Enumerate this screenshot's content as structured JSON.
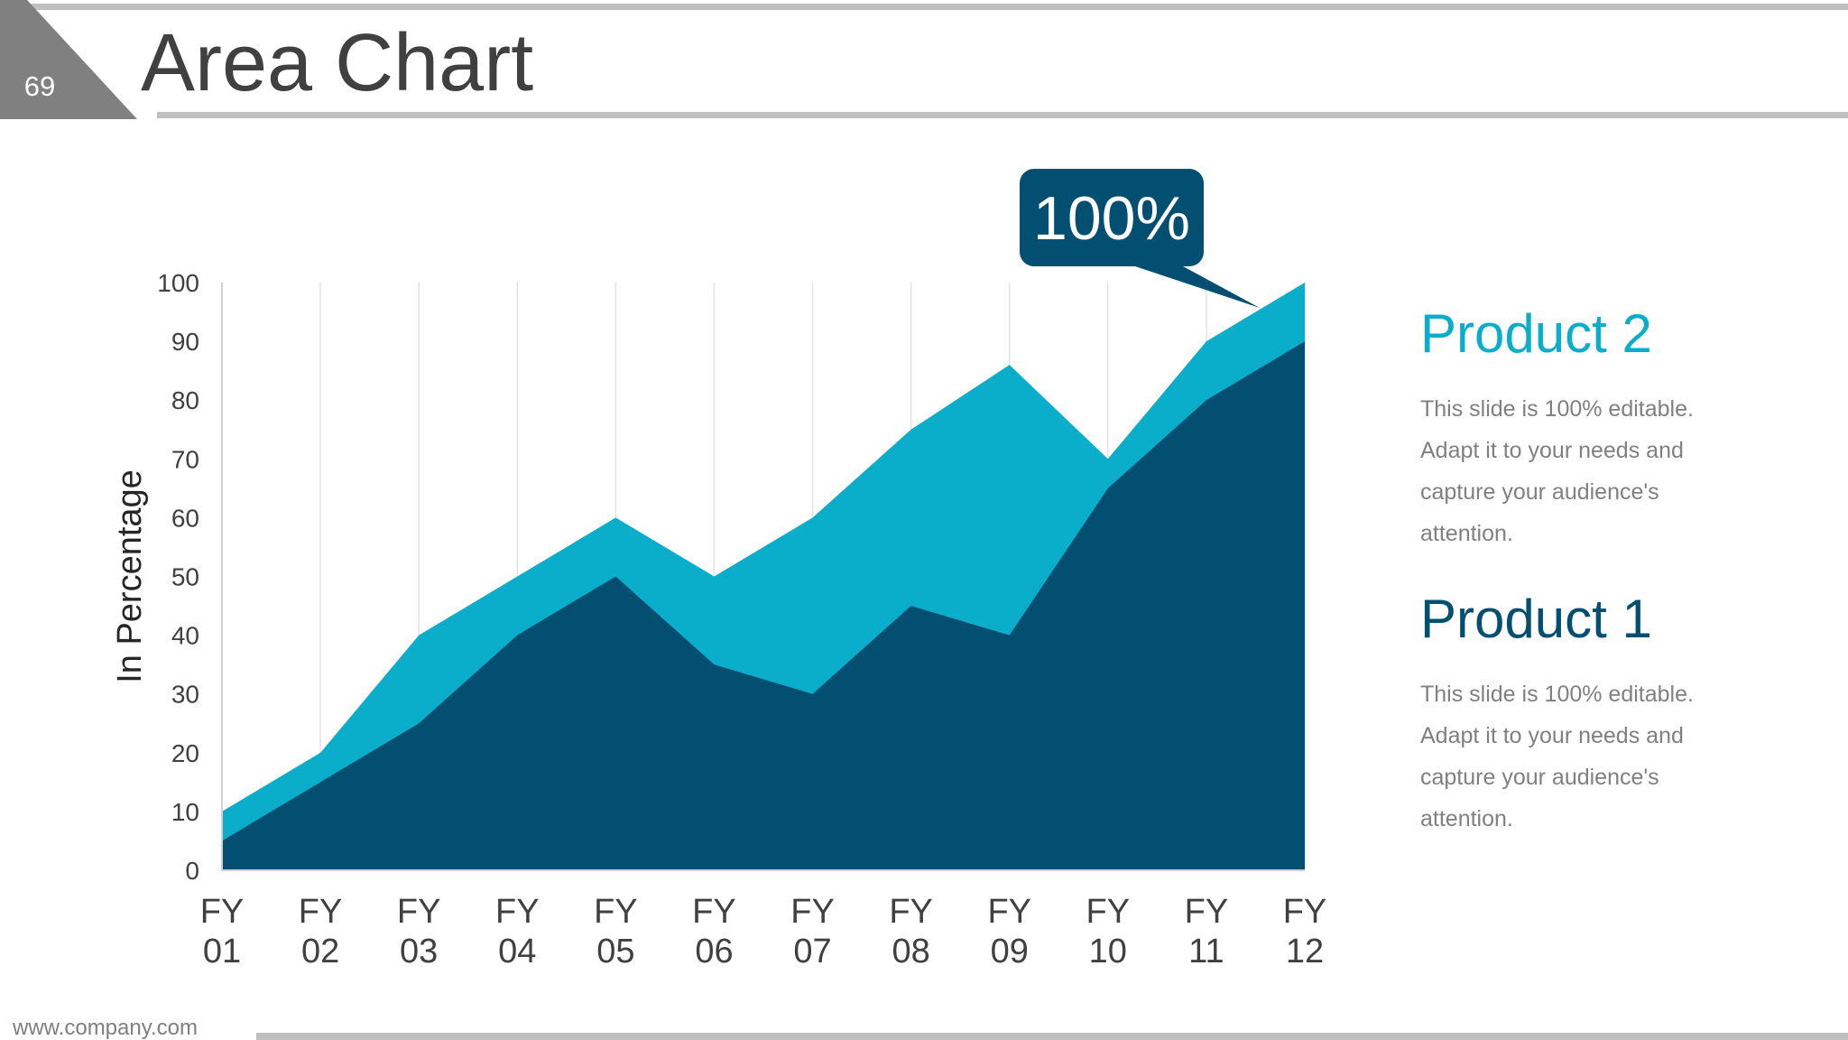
{
  "slide": {
    "number": "69",
    "title": "Area Chart",
    "footer": "www.company.com"
  },
  "colors": {
    "dark": "#034f72",
    "light": "#0aaecb",
    "gray_bar": "#bfbfbf",
    "tab": "#808080",
    "title": "#404040",
    "text": "#808080"
  },
  "callout": {
    "label": "100%"
  },
  "legend": [
    {
      "title": "Product 2",
      "color": "#0aaecb",
      "description": "This slide is 100% editable. Adapt it to your needs and capture your audience's attention."
    },
    {
      "title": "Product 1",
      "color": "#034f72",
      "description": "This slide is 100% editable. Adapt it to your needs and capture your audience's attention."
    }
  ],
  "chart_data": {
    "type": "area",
    "ylabel": "In Percentage",
    "xlabel": "",
    "ylim": [
      0,
      100
    ],
    "yticks": [
      0,
      10,
      20,
      30,
      40,
      50,
      60,
      70,
      80,
      90,
      100
    ],
    "categories": [
      [
        "FY",
        "01"
      ],
      [
        "FY",
        "02"
      ],
      [
        "FY",
        "03"
      ],
      [
        "FY",
        "04"
      ],
      [
        "FY",
        "05"
      ],
      [
        "FY",
        "06"
      ],
      [
        "FY",
        "07"
      ],
      [
        "FY",
        "08"
      ],
      [
        "FY",
        "09"
      ],
      [
        "FY",
        "10"
      ],
      [
        "FY",
        "11"
      ],
      [
        "FY",
        "12"
      ]
    ],
    "grid": "vertical",
    "series": [
      {
        "name": "Product 2",
        "color": "#0aaecb",
        "values": [
          10,
          20,
          40,
          50,
          60,
          50,
          60,
          75,
          86,
          70,
          90,
          100
        ]
      },
      {
        "name": "Product 1",
        "color": "#034f72",
        "values": [
          5,
          15,
          25,
          40,
          50,
          35,
          30,
          45,
          40,
          65,
          80,
          90
        ]
      }
    ]
  }
}
